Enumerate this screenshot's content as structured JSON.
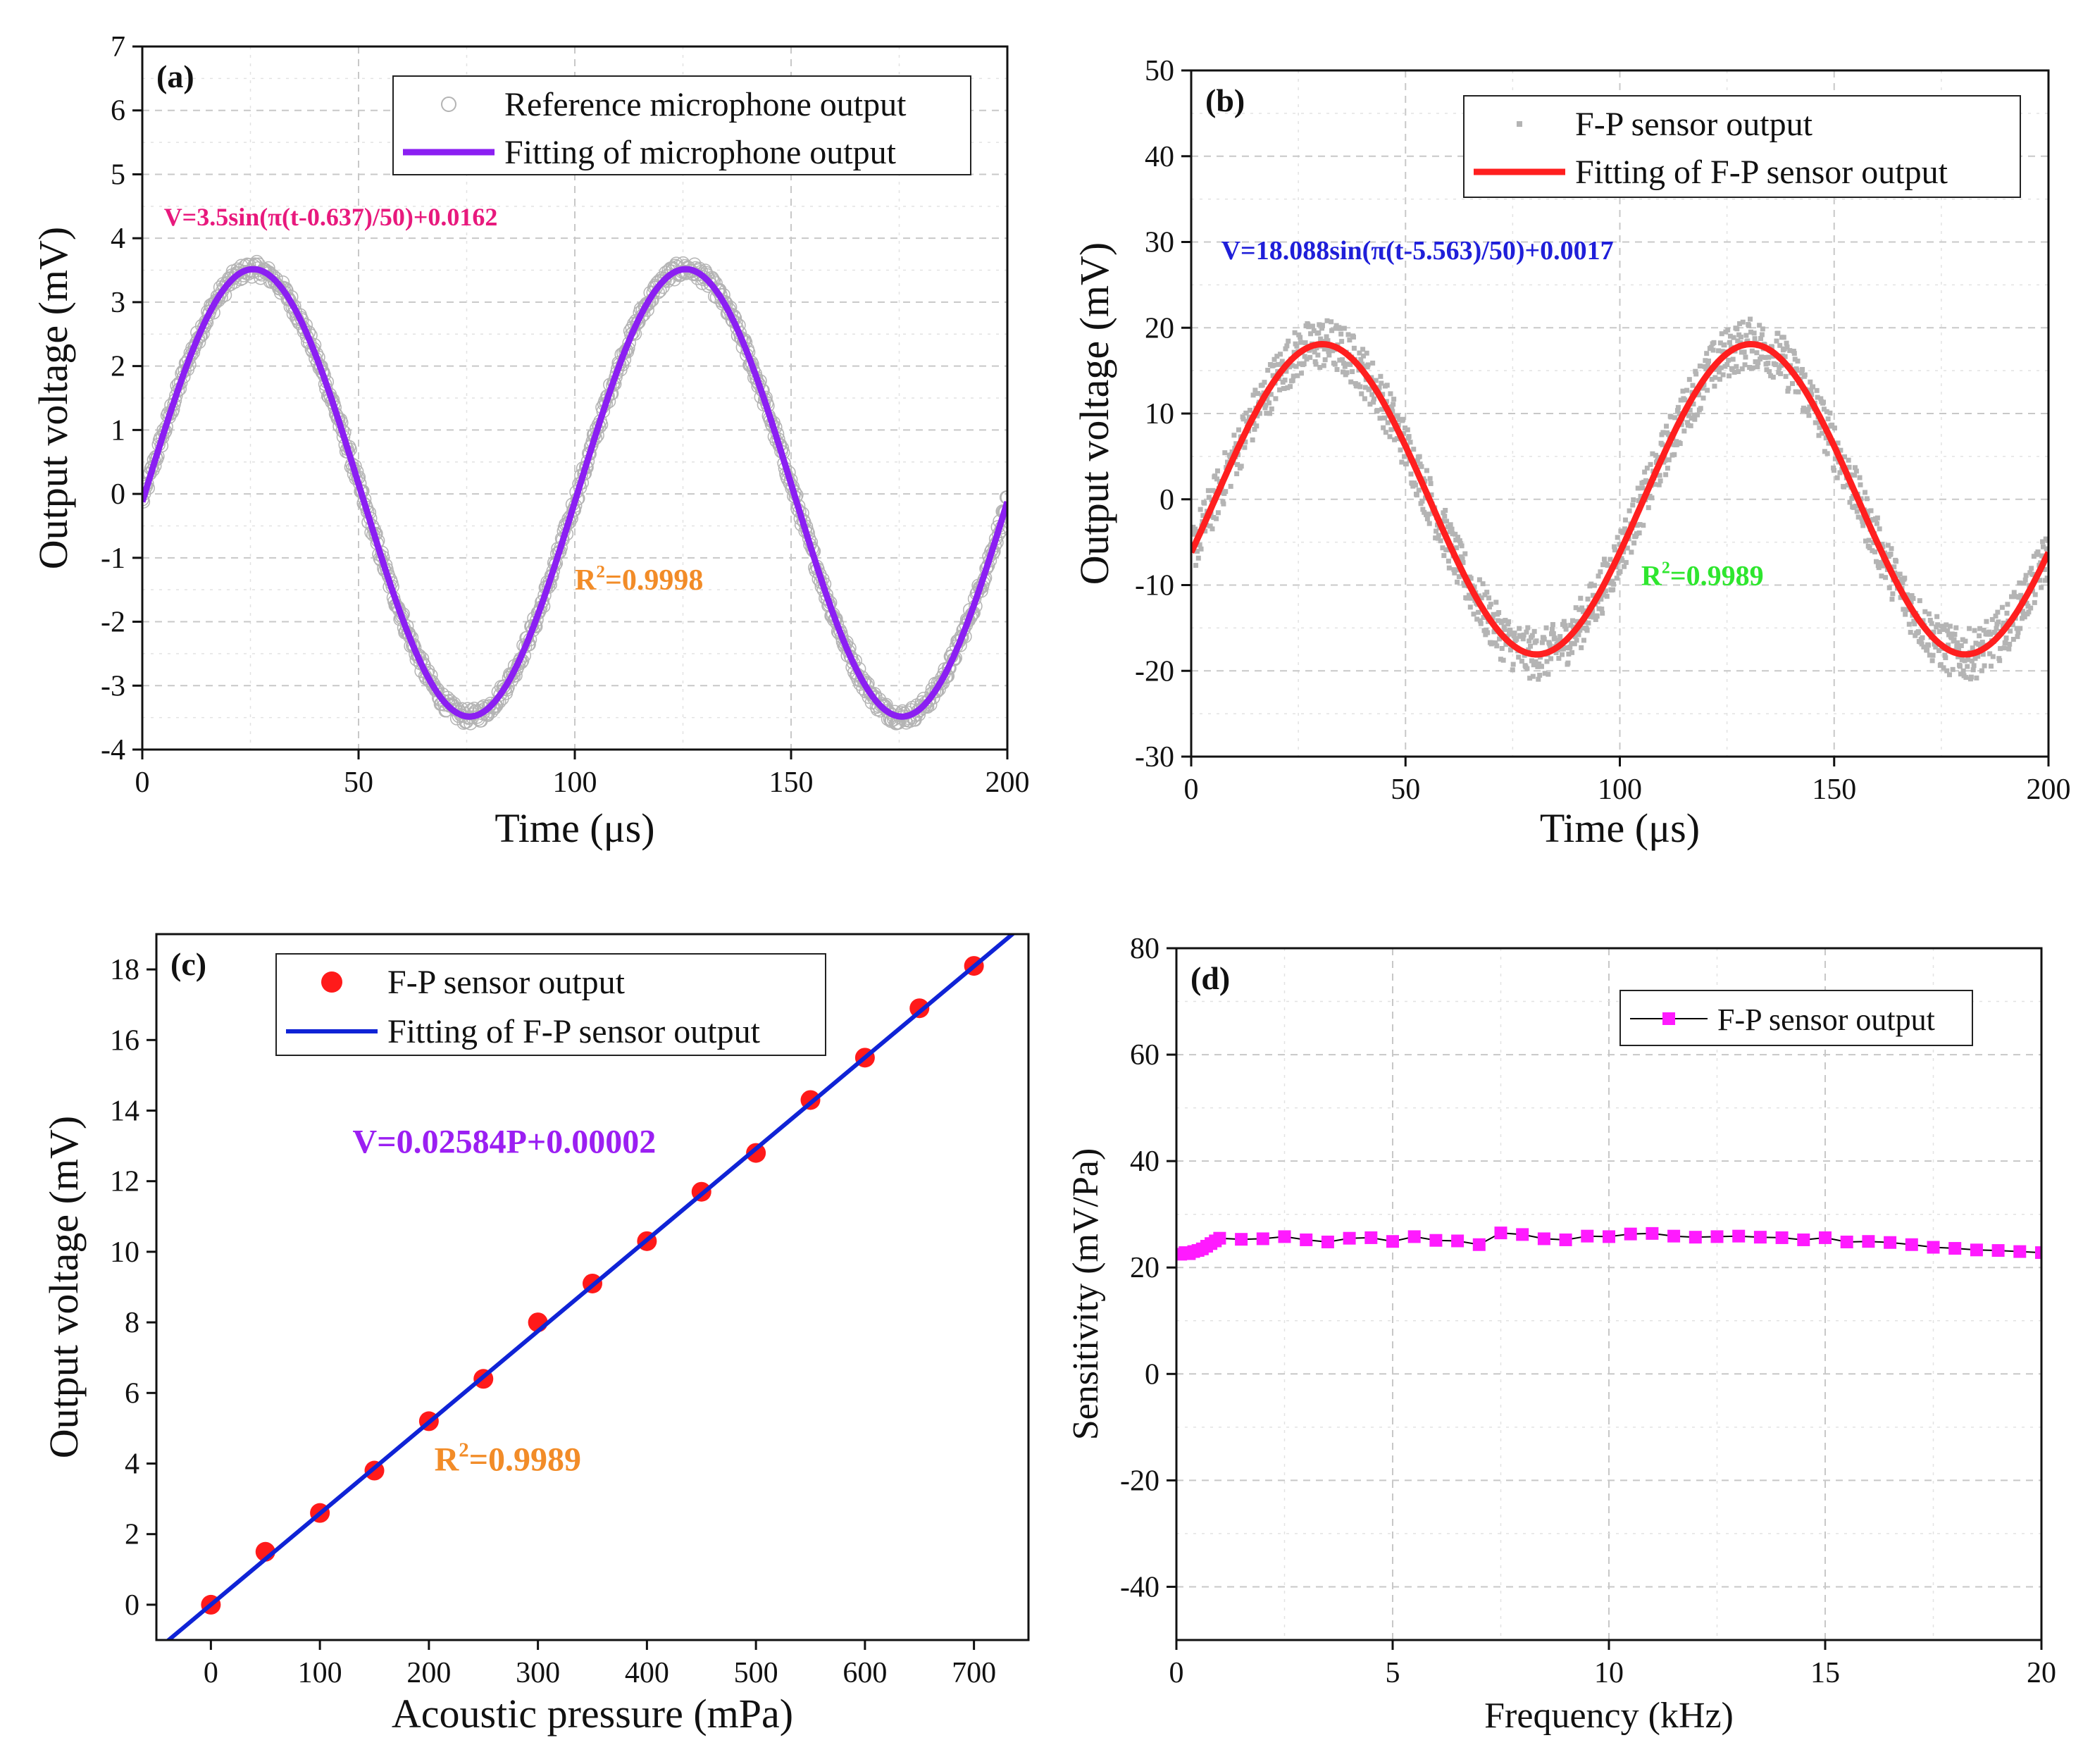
{
  "chart_data": [
    {
      "id": "a",
      "type": "scatter+line",
      "panel_label": "(a)",
      "xlabel": "Time (μs)",
      "ylabel": "Output voltage (mV)",
      "xlim": [
        0,
        200
      ],
      "ylim": [
        -4,
        7
      ],
      "xticks": [
        0,
        50,
        100,
        150,
        200
      ],
      "yticks": [
        -4,
        -3,
        -2,
        -1,
        0,
        1,
        2,
        3,
        4,
        5,
        6,
        7
      ],
      "grid": true,
      "legend": [
        "Reference microphone output",
        "Fitting of microphone output"
      ],
      "legend_position": "top-right",
      "series": [
        {
          "name": "Reference microphone output",
          "kind": "scatter",
          "marker": "open-circle",
          "color": "#b4b4b4",
          "model": "sine",
          "amplitude": 3.5,
          "phase_shift": 0.637,
          "half_period": 50,
          "offset": 0.0162,
          "noise": 0.12
        },
        {
          "name": "Fitting of microphone output",
          "kind": "line",
          "color": "#8b1ff2",
          "model": "sine",
          "amplitude": 3.5,
          "phase_shift": 0.637,
          "half_period": 50,
          "offset": 0.0162
        }
      ],
      "annotations": [
        {
          "text": "V=3.5sin(π(t-0.637)/50)+0.0162",
          "color": "#e8197d",
          "x": 5,
          "y": 4.2
        },
        {
          "text": "R",
          "sup": "2",
          "rest": "=0.9998",
          "color": "#f28c28",
          "x": 100,
          "y": -1.5
        }
      ]
    },
    {
      "id": "b",
      "type": "scatter+line",
      "panel_label": "(b)",
      "xlabel": "Time (μs)",
      "ylabel": "Output voltage (mV)",
      "xlim": [
        0,
        200
      ],
      "ylim": [
        -30,
        50
      ],
      "xticks": [
        0,
        50,
        100,
        150,
        200
      ],
      "yticks": [
        -30,
        -20,
        -10,
        0,
        10,
        20,
        30,
        40,
        50
      ],
      "grid": true,
      "legend": [
        "F-P sensor output",
        "Fitting of F-P sensor output"
      ],
      "legend_position": "top-right",
      "series": [
        {
          "name": "F-P sensor output",
          "kind": "scatter",
          "marker": "small-dot",
          "color": "#b4b4b4",
          "model": "sine",
          "amplitude": 18.088,
          "phase_shift": 5.563,
          "half_period": 50,
          "offset": 0.0017,
          "noise": 3.0
        },
        {
          "name": "Fitting of F-P sensor output",
          "kind": "line",
          "color": "#ff1f1f",
          "model": "sine",
          "amplitude": 18.088,
          "phase_shift": 5.563,
          "half_period": 50,
          "offset": 0.0017
        }
      ],
      "annotations": [
        {
          "text": "V=18.088sin(π(t-5.563)/50)+0.0017",
          "color": "#1f1fd9",
          "x": 7,
          "y": 28
        },
        {
          "text": "R",
          "sup": "2",
          "rest": "=0.9989",
          "color": "#2ee62e",
          "x": 105,
          "y": -10
        }
      ]
    },
    {
      "id": "c",
      "type": "scatter+line",
      "panel_label": "(c)",
      "xlabel": "Acoustic pressure (mPa)",
      "ylabel": "Output voltage (mV)",
      "xlim": [
        -50,
        750
      ],
      "ylim": [
        -1,
        19
      ],
      "xticks": [
        0,
        100,
        200,
        300,
        400,
        500,
        600,
        700
      ],
      "yticks": [
        0,
        2,
        4,
        6,
        8,
        10,
        12,
        14,
        16,
        18
      ],
      "grid": false,
      "legend": [
        "F-P sensor output",
        "Fitting of F-P sensor output"
      ],
      "legend_position": "top-left",
      "series": [
        {
          "name": "F-P sensor output",
          "kind": "scatter",
          "marker": "filled-circle",
          "color": "#ff1a1a",
          "x": [
            0,
            50,
            100,
            150,
            200,
            250,
            300,
            350,
            400,
            450,
            500,
            550,
            600,
            650,
            700
          ],
          "y": [
            0.0,
            1.5,
            2.6,
            3.8,
            5.2,
            6.4,
            8.0,
            9.1,
            10.3,
            11.7,
            12.8,
            14.3,
            15.5,
            16.9,
            18.1
          ]
        },
        {
          "name": "Fitting of F-P sensor output",
          "kind": "line",
          "color": "#0f23d6",
          "slope": 0.02584,
          "intercept": 2e-05
        }
      ],
      "annotations": [
        {
          "text": "V=0.02584P+0.00002",
          "color": "#9b1ff2",
          "x": 130,
          "y": 12.8
        },
        {
          "text": "R",
          "sup": "2",
          "rest": "=0.9989",
          "color": "#f28c28",
          "x": 205,
          "y": 3.8
        }
      ]
    },
    {
      "id": "d",
      "type": "line",
      "panel_label": "(d)",
      "xlabel": "Frequency (kHz)",
      "ylabel": "Sensitivity (mV/Pa)",
      "xlim": [
        0,
        20
      ],
      "ylim": [
        -50,
        80
      ],
      "xticks": [
        0,
        5,
        10,
        15,
        20
      ],
      "yticks": [
        -40,
        -20,
        0,
        20,
        40,
        60,
        80
      ],
      "grid": true,
      "legend": [
        "F-P sensor output"
      ],
      "legend_position": "top-right",
      "series": [
        {
          "name": "F-P sensor output",
          "kind": "line+marker",
          "marker": "square",
          "color": "#ff1aff",
          "line_color": "#000000",
          "x": [
            0.1,
            0.2,
            0.3,
            0.4,
            0.5,
            0.6,
            0.7,
            0.8,
            0.9,
            1.0,
            1.5,
            2.0,
            2.5,
            3.0,
            3.5,
            4.0,
            4.5,
            5.0,
            5.5,
            6.0,
            6.5,
            7.0,
            7.5,
            8.0,
            8.5,
            9.0,
            9.5,
            10.0,
            10.5,
            11.0,
            11.5,
            12.0,
            12.5,
            13.0,
            13.5,
            14.0,
            14.5,
            15.0,
            15.5,
            16.0,
            16.5,
            17.0,
            17.5,
            18.0,
            18.5,
            19.0,
            19.5,
            20.0
          ],
          "y": [
            22.5,
            22.8,
            22.6,
            23.0,
            23.2,
            23.5,
            24.0,
            24.5,
            25.0,
            25.5,
            25.3,
            25.4,
            25.8,
            25.2,
            24.8,
            25.5,
            25.6,
            24.9,
            25.8,
            25.1,
            25.0,
            24.3,
            26.5,
            26.2,
            25.4,
            25.2,
            25.9,
            25.8,
            26.3,
            26.4,
            25.9,
            25.7,
            25.8,
            25.9,
            25.7,
            25.6,
            25.2,
            25.6,
            24.8,
            24.9,
            24.7,
            24.3,
            23.8,
            23.6,
            23.3,
            23.2,
            23.0,
            22.8
          ]
        }
      ],
      "annotations": []
    }
  ]
}
